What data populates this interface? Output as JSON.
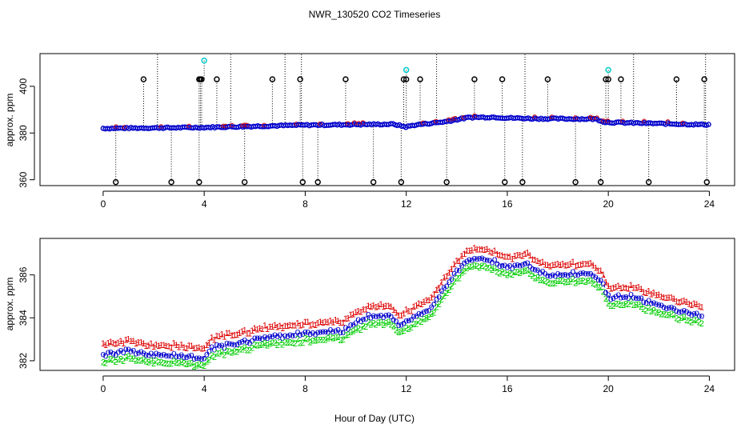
{
  "chart_data": [
    {
      "type": "scatter",
      "title": "NWR_130520  CO2 Timeseries",
      "xlabel": "",
      "ylabel": "approx. ppm",
      "xlim": [
        -2.5,
        25
      ],
      "ylim": [
        357.5,
        414
      ],
      "x_ticks": [
        0,
        4,
        8,
        12,
        16,
        20,
        24
      ],
      "y_ticks": [
        360,
        380,
        400
      ],
      "colors": {
        "outlier": "#000000",
        "flagged": "#00cccc",
        "series": "#0000cc",
        "series2": "#cc0000"
      },
      "baseline": [
        [
          0,
          382.0
        ],
        [
          4,
          382.4
        ],
        [
          6,
          382.9
        ],
        [
          8,
          383.4
        ],
        [
          11.5,
          383.8
        ],
        [
          12,
          382.6
        ],
        [
          12.3,
          383.4
        ],
        [
          13.5,
          384.8
        ],
        [
          14.5,
          386.7
        ],
        [
          15.5,
          386.8
        ],
        [
          15.9,
          386.5
        ],
        [
          17,
          386.2
        ],
        [
          19.5,
          386.0
        ],
        [
          19.9,
          384.6
        ],
        [
          23.8,
          383.6
        ]
      ],
      "outliers_high": [
        1.6,
        3.8,
        3.85,
        3.9,
        4.5,
        6.7,
        7.8,
        9.6,
        11.9,
        12.0,
        12.55,
        14.7,
        15.8,
        17.6,
        19.9,
        20.0,
        20.5,
        22.7,
        23.8
      ],
      "outliers_high_value": 403,
      "outliers_low": [
        0.5,
        2.7,
        3.8,
        5.6,
        7.9,
        8.5,
        10.7,
        11.8,
        13.6,
        15.9,
        16.6,
        18.7,
        19.7,
        21.6,
        23.9
      ],
      "outliers_low_value": 359,
      "flagged_points": [
        {
          "x": 4.0,
          "y": 411
        },
        {
          "x": 12.0,
          "y": 407
        },
        {
          "x": 20.0,
          "y": 407
        }
      ],
      "x_max": 24
    },
    {
      "type": "scatter",
      "title": "",
      "xlabel": "Hour of Day (UTC)",
      "ylabel": "approx. ppm",
      "xlim": [
        -2.5,
        25
      ],
      "ylim": [
        381.55,
        387.7
      ],
      "x_ticks": [
        0,
        4,
        8,
        12,
        16,
        20,
        24
      ],
      "y_ticks": [
        382,
        384,
        386
      ],
      "colors": {
        "series1": "#dd0000",
        "series2": "#00cc00",
        "mean": "#0000cc"
      },
      "series": [
        {
          "name": "1",
          "offset": 0.45,
          "color": "#dd0000"
        },
        {
          "name": "o",
          "offset": 0.0,
          "color": "#0000cc"
        },
        {
          "name": "2",
          "offset": -0.35,
          "color": "#00cc00"
        }
      ],
      "baseline": [
        [
          0,
          382.3
        ],
        [
          1,
          382.5
        ],
        [
          2,
          382.25
        ],
        [
          3,
          382.3
        ],
        [
          3.9,
          382.1
        ],
        [
          4.05,
          382.2
        ],
        [
          4.3,
          382.6
        ],
        [
          5.5,
          382.9
        ],
        [
          7,
          383.2
        ],
        [
          8,
          383.3
        ],
        [
          9.5,
          383.4
        ],
        [
          10.5,
          384.1
        ],
        [
          11.4,
          384.1
        ],
        [
          11.7,
          383.7
        ],
        [
          12.1,
          383.9
        ],
        [
          13,
          384.5
        ],
        [
          13.5,
          385.4
        ],
        [
          14.3,
          386.6
        ],
        [
          15,
          386.8
        ],
        [
          15.8,
          386.5
        ],
        [
          16.3,
          386.4
        ],
        [
          16.7,
          386.6
        ],
        [
          17.5,
          386.0
        ],
        [
          19.3,
          386.1
        ],
        [
          19.8,
          385.6
        ],
        [
          20.0,
          385.0
        ],
        [
          21,
          385.0
        ],
        [
          22,
          384.6
        ],
        [
          23.7,
          384.1
        ]
      ],
      "x_max": 23.7
    }
  ]
}
